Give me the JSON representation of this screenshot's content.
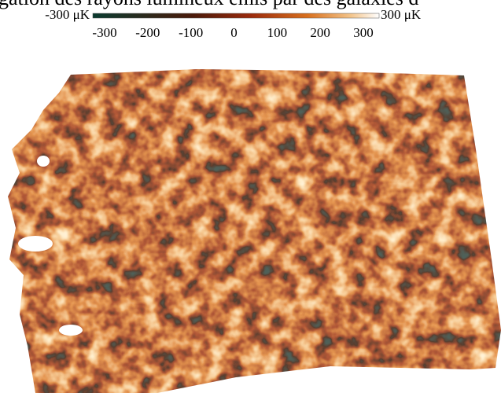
{
  "caption": "gation des rayons lumineux émis par des galaxies d",
  "colorbar": {
    "min_label": "-300 μK",
    "max_label": "300 μK",
    "range": [
      -300,
      300
    ],
    "ticks": [
      -300,
      -200,
      -100,
      0,
      100,
      200,
      300
    ]
  }
}
